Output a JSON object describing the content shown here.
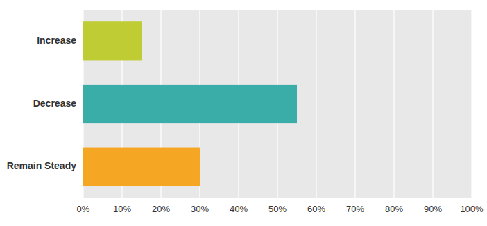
{
  "chart_data": {
    "type": "bar",
    "orientation": "horizontal",
    "categories": [
      "Remain Steady",
      "Decrease",
      "Increase"
    ],
    "values": [
      30,
      55,
      15
    ],
    "colors": [
      "#F5A623",
      "#3AADA8",
      "#BFCC33"
    ],
    "xlim": [
      0,
      100
    ],
    "xticks": [
      {
        "value": 0,
        "label": "0%"
      },
      {
        "value": 10,
        "label": "10%"
      },
      {
        "value": 20,
        "label": "20%"
      },
      {
        "value": 30,
        "label": "30%"
      },
      {
        "value": 40,
        "label": "40%"
      },
      {
        "value": 50,
        "label": "50%"
      },
      {
        "value": 60,
        "label": "60%"
      },
      {
        "value": 70,
        "label": "70%"
      },
      {
        "value": 80,
        "label": "80%"
      },
      {
        "value": 90,
        "label": "90%"
      },
      {
        "value": 100,
        "label": "100%"
      }
    ],
    "grid": true
  }
}
